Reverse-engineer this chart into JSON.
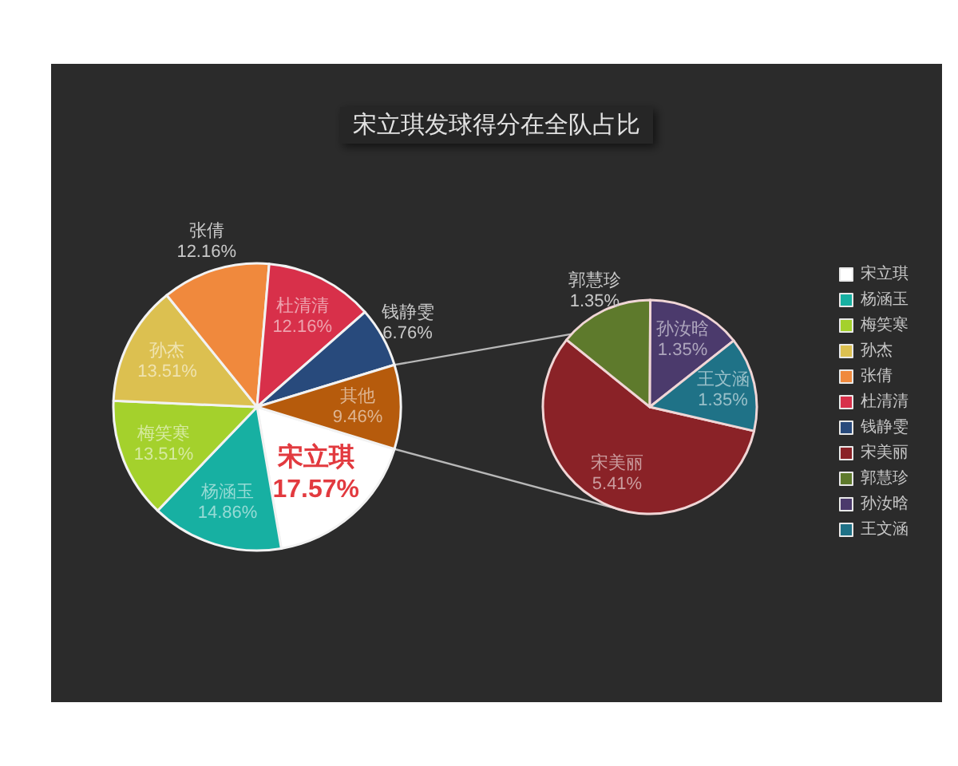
{
  "chart_data": {
    "type": "pie",
    "title": "宋立琪发球得分在全队占比",
    "legend": "right",
    "categories": [
      "宋立琪",
      "杨涵玉",
      "梅笑寒",
      "孙杰",
      "张倩",
      "杜清清",
      "钱静雯",
      "其他",
      "宋美丽",
      "郭慧珍",
      "孙汝晗",
      "王文涵"
    ],
    "colors": [
      "#ffffff",
      "#17b0a2",
      "#a4d12c",
      "#dcc050",
      "#f0893d",
      "#d8304a",
      "#284a7c",
      "#b65b0c",
      "#8a2227",
      "#5e7a2c",
      "#4b3a6c",
      "#1f7287"
    ],
    "series": [
      {
        "values": [
          17.57,
          14.86,
          13.51,
          13.51,
          12.16,
          12.16,
          6.76,
          9.46,
          null,
          null,
          null,
          null
        ],
        "value_labels": [
          "17.57%",
          "14.86%",
          "13.51%",
          "13.51%",
          "12.16%",
          "12.16%",
          "6.76%",
          "9.46%",
          null,
          null,
          null,
          null
        ]
      },
      {
        "values": [
          null,
          null,
          null,
          null,
          null,
          null,
          null,
          null,
          5.41,
          1.35,
          1.35,
          1.35
        ],
        "value_labels": [
          null,
          null,
          null,
          null,
          null,
          null,
          null,
          null,
          "5.41%",
          "1.35%",
          "1.35%",
          "1.35%"
        ]
      }
    ]
  }
}
